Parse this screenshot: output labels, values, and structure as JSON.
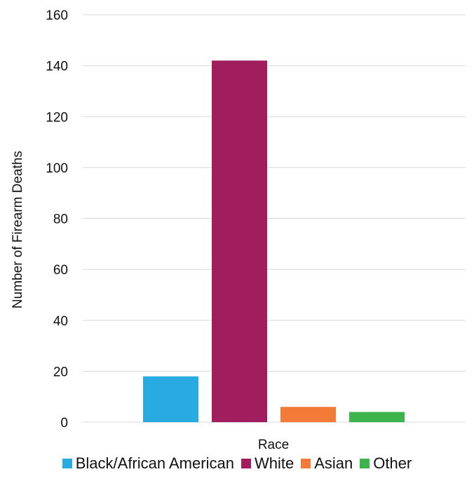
{
  "chart_data": {
    "type": "bar",
    "categories": [
      "Race"
    ],
    "series": [
      {
        "name": "Black/African American",
        "values": [
          18
        ],
        "color": "#29abe2"
      },
      {
        "name": "White",
        "values": [
          142
        ],
        "color": "#a01e5e"
      },
      {
        "name": "Asian",
        "values": [
          6
        ],
        "color": "#f47a38"
      },
      {
        "name": "Other",
        "values": [
          4
        ],
        "color": "#3cb44b"
      }
    ],
    "xlabel": "Race",
    "ylabel": "Number of Firearm Deaths",
    "ylim": [
      0,
      160
    ],
    "yticks": [
      0,
      20,
      40,
      60,
      80,
      100,
      120,
      140,
      160
    ],
    "grid": "horizontal",
    "legend_position": "bottom"
  }
}
